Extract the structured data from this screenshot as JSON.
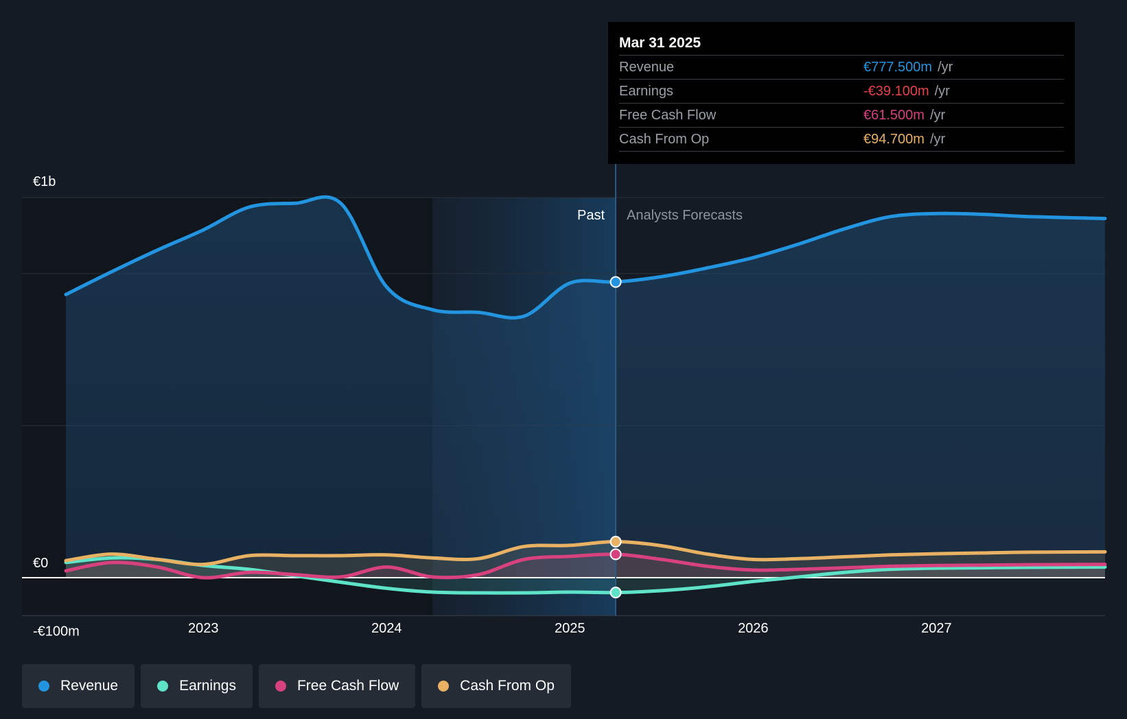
{
  "chart_data": {
    "type": "area",
    "currency": "€",
    "unit": "m",
    "y_tick_labels": [
      {
        "value": 1000,
        "label": "€1b"
      },
      {
        "value": 0,
        "label": "€0"
      },
      {
        "value": -100,
        "label": "-€100m"
      }
    ],
    "ylim": [
      -100,
      1000
    ],
    "xlim": [
      2022.25,
      2027.92
    ],
    "x_tick_labels": [
      {
        "value": 2023,
        "label": "2023"
      },
      {
        "value": 2024,
        "label": "2024"
      },
      {
        "value": 2025,
        "label": "2025"
      },
      {
        "value": 2026,
        "label": "2026"
      },
      {
        "value": 2027,
        "label": "2027"
      }
    ],
    "past_start": 2024.25,
    "cutoff": 2025.25,
    "past_label": "Past",
    "forecast_label": "Analysts Forecasts",
    "series": [
      {
        "name": "Revenue",
        "color": "#2394df",
        "x": [
          2022.25,
          2022.5,
          2022.75,
          2023.0,
          2023.25,
          2023.5,
          2023.75,
          2024.0,
          2024.25,
          2024.5,
          2024.75,
          2025.0,
          2025.25,
          2025.5,
          2025.75,
          2026.0,
          2026.25,
          2026.5,
          2026.75,
          2027.0,
          2027.25,
          2027.5,
          2027.92
        ],
        "values": [
          745,
          805,
          862,
          915,
          975,
          985,
          985,
          765,
          705,
          698,
          688,
          775,
          778,
          792,
          815,
          842,
          878,
          918,
          950,
          958,
          956,
          950,
          945
        ]
      },
      {
        "name": "Earnings",
        "color": "#5ee3c8",
        "x": [
          2022.25,
          2022.5,
          2022.75,
          2023.0,
          2023.25,
          2023.5,
          2023.75,
          2024.0,
          2024.25,
          2024.5,
          2024.75,
          2025.0,
          2025.25,
          2025.5,
          2025.75,
          2026.0,
          2026.25,
          2026.5,
          2026.75,
          2027.0,
          2027.25,
          2027.5,
          2027.92
        ],
        "values": [
          40,
          52,
          48,
          32,
          22,
          5,
          -12,
          -28,
          -38,
          -40,
          -40,
          -38,
          -39.1,
          -34,
          -24,
          -10,
          2,
          14,
          22,
          25,
          26,
          27,
          28
        ]
      },
      {
        "name": "Free Cash Flow",
        "color": "#d6417e",
        "x": [
          2022.25,
          2022.5,
          2022.75,
          2023.0,
          2023.25,
          2023.5,
          2023.75,
          2024.0,
          2024.25,
          2024.5,
          2024.75,
          2025.0,
          2025.25,
          2025.5,
          2025.75,
          2026.0,
          2026.25,
          2026.5,
          2026.75,
          2027.0,
          2027.25,
          2027.5,
          2027.92
        ],
        "values": [
          18,
          40,
          28,
          0,
          14,
          8,
          2,
          28,
          2,
          8,
          48,
          56,
          61.5,
          48,
          30,
          20,
          22,
          26,
          30,
          32,
          33,
          34,
          35
        ]
      },
      {
        "name": "Cash From Op",
        "color": "#e9b163",
        "x": [
          2022.25,
          2022.5,
          2022.75,
          2023.0,
          2023.25,
          2023.5,
          2023.75,
          2024.0,
          2024.25,
          2024.5,
          2024.75,
          2025.0,
          2025.25,
          2025.5,
          2025.75,
          2026.0,
          2026.25,
          2026.5,
          2026.75,
          2027.0,
          2027.25,
          2027.5,
          2027.92
        ],
        "values": [
          45,
          62,
          48,
          35,
          58,
          58,
          58,
          60,
          52,
          50,
          82,
          85,
          94.7,
          84,
          62,
          48,
          50,
          55,
          60,
          63,
          65,
          67,
          68
        ]
      }
    ],
    "highlight": {
      "date": "Mar 31 2025",
      "x": 2025.25,
      "rows": [
        {
          "label": "Revenue",
          "value": "€777.500m",
          "unit": "/yr",
          "color": "#2394df"
        },
        {
          "label": "Earnings",
          "value": "-€39.100m",
          "unit": "/yr",
          "color": "#e8414b"
        },
        {
          "label": "Free Cash Flow",
          "value": "€61.500m",
          "unit": "/yr",
          "color": "#d6417e"
        },
        {
          "label": "Cash From Op",
          "value": "€94.700m",
          "unit": "/yr",
          "color": "#e9b163"
        }
      ]
    }
  },
  "legend": [
    {
      "label": "Revenue",
      "color": "#2394df"
    },
    {
      "label": "Earnings",
      "color": "#5ee3c8"
    },
    {
      "label": "Free Cash Flow",
      "color": "#d6417e"
    },
    {
      "label": "Cash From Op",
      "color": "#e9b163"
    }
  ]
}
